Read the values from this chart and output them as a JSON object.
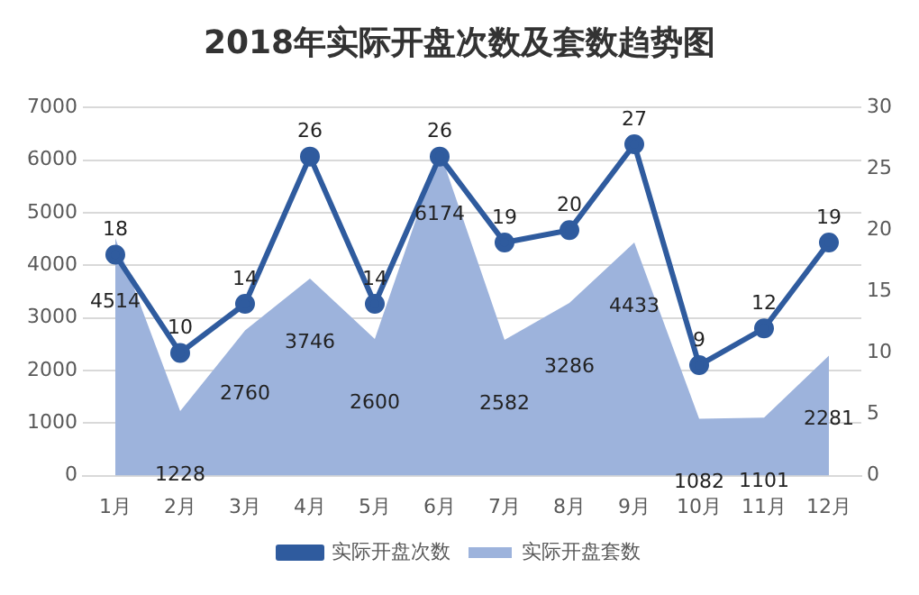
{
  "chart_data": {
    "type": "line",
    "title": "2018年实际开盘次数及套数趋势图",
    "categories": [
      "1月",
      "2月",
      "3月",
      "4月",
      "5月",
      "6月",
      "7月",
      "8月",
      "9月",
      "10月",
      "11月",
      "12月"
    ],
    "series": [
      {
        "name": "实际开盘套数",
        "type": "area",
        "color": "#9db3dc",
        "values": [
          4514,
          1228,
          2760,
          3746,
          2600,
          6174,
          2582,
          3286,
          4433,
          1082,
          1101,
          2281
        ]
      },
      {
        "name": "实际开盘次数",
        "axis": "y2",
        "color": "#2f5b9e",
        "marker": "circle",
        "values": [
          18,
          10,
          14,
          26,
          14,
          26,
          19,
          20,
          27,
          9,
          12,
          19
        ]
      }
    ],
    "ylim": [
      0,
      7000
    ],
    "yticks": [
      0,
      1000,
      2000,
      3000,
      4000,
      5000,
      6000,
      7000
    ],
    "y2lim": [
      0,
      30
    ],
    "y2ticks": [
      0,
      5,
      10,
      15,
      20,
      25,
      30
    ],
    "grid": "y",
    "legend": "bottom",
    "line_style": "solid",
    "data_labels": true
  }
}
